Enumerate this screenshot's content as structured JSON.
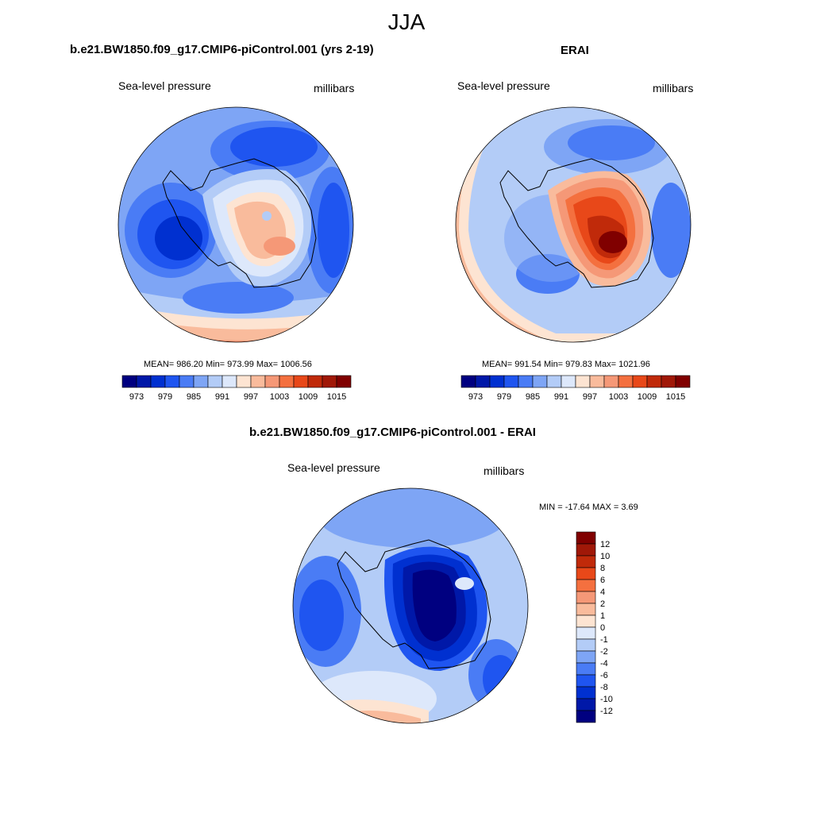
{
  "page": {
    "title": "JJA"
  },
  "colors": {
    "scale": [
      "#000080",
      "#0018a8",
      "#0030d0",
      "#1f55f0",
      "#4a7cf5",
      "#7ea5f5",
      "#b3ccf7",
      "#dde8fb",
      "#fde4d2",
      "#f9bb9c",
      "#f59877",
      "#f4703f",
      "#e84819",
      "#c02a0a",
      "#a01808",
      "#800000"
    ]
  },
  "chart_data": [
    {
      "type": "heatmap",
      "projection": "south-polar-stereographic",
      "title": "b.e21.BW1850.f09_g17.CMIP6-piControl.001 (yrs 2-19)",
      "field_label": "Sea-level pressure",
      "units": "millibars",
      "stats": "MEAN= 986.20  Min= 973.99  Max= 1006.56",
      "mean": 986.2,
      "min": 973.99,
      "max": 1006.56,
      "colorbar": {
        "orientation": "horizontal",
        "levels": [
          973,
          979,
          985,
          991,
          997,
          1003,
          1009,
          1015
        ]
      }
    },
    {
      "type": "heatmap",
      "projection": "south-polar-stereographic",
      "title": "ERAI",
      "field_label": "Sea-level pressure",
      "units": "millibars",
      "stats": "MEAN= 991.54  Min= 979.83  Max= 1021.96",
      "mean": 991.54,
      "min": 979.83,
      "max": 1021.96,
      "colorbar": {
        "orientation": "horizontal",
        "levels": [
          973,
          979,
          985,
          991,
          997,
          1003,
          1009,
          1015
        ]
      }
    },
    {
      "type": "heatmap",
      "projection": "south-polar-stereographic",
      "title": "b.e21.BW1850.f09_g17.CMIP6-piControl.001 - ERAI",
      "field_label": "Sea-level pressure",
      "units": "millibars",
      "stats": "MIN = -17.64 MAX =   3.69",
      "min": -17.64,
      "max": 3.69,
      "colorbar": {
        "orientation": "vertical",
        "levels": [
          12,
          10,
          8,
          6,
          4,
          2,
          1,
          0,
          -1,
          -2,
          -4,
          -6,
          -8,
          -10,
          -12
        ]
      }
    }
  ]
}
